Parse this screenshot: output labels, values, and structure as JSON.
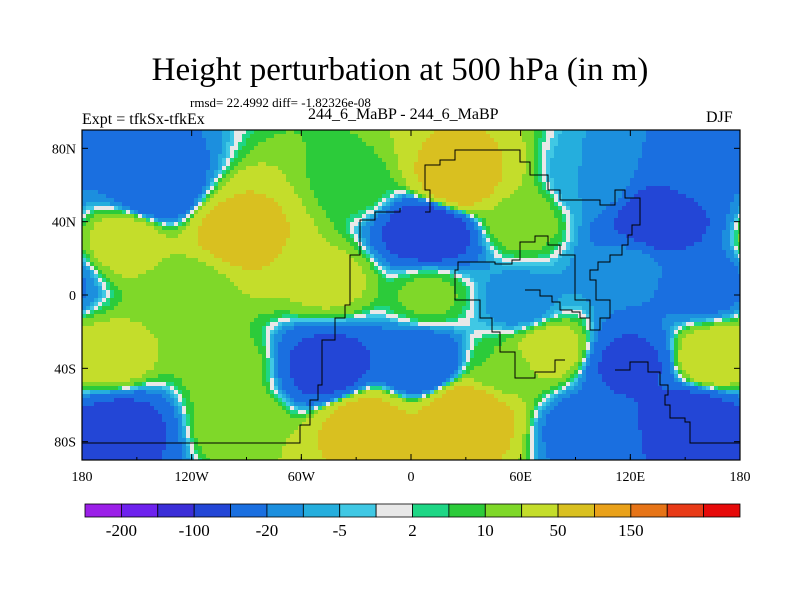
{
  "header": {
    "title": "Height perturbation at 500 hPa (in m)",
    "stats": "rmsd= 22.4992 diff= -1.82326e-08",
    "experiment": "Expt = tfkSx-tfkEx",
    "case_name": "244_6_MaBP - 244_6_MaBP",
    "season": "DJF"
  },
  "chart_data": {
    "type": "heatmap",
    "variable": "Height perturbation at 500 hPa",
    "units": "m",
    "xlim": [
      -180,
      180
    ],
    "ylim": [
      -90,
      90
    ],
    "x_ticks": [
      {
        "value": -180,
        "label": "180"
      },
      {
        "value": -120,
        "label": "120W"
      },
      {
        "value": -60,
        "label": "60W"
      },
      {
        "value": 0,
        "label": "0"
      },
      {
        "value": 60,
        "label": "60E"
      },
      {
        "value": 120,
        "label": "120E"
      },
      {
        "value": 180,
        "label": "180"
      }
    ],
    "y_ticks": [
      {
        "value": 80,
        "label": "80N"
      },
      {
        "value": 40,
        "label": "40N"
      },
      {
        "value": 0,
        "label": "0"
      },
      {
        "value": -40,
        "label": "40S"
      },
      {
        "value": -80,
        "label": "80S"
      }
    ],
    "colorbar": {
      "levels": [
        -300,
        -200,
        -150,
        -100,
        -50,
        -20,
        -10,
        -5,
        -2,
        2,
        5,
        10,
        20,
        50,
        100,
        150,
        200,
        300
      ],
      "labels": [
        {
          "after_box": 1,
          "text": "-200"
        },
        {
          "after_box": 3,
          "text": "-100"
        },
        {
          "after_box": 5,
          "text": "-20"
        },
        {
          "after_box": 7,
          "text": "-5"
        },
        {
          "after_box": 9,
          "text": "2"
        },
        {
          "after_box": 11,
          "text": "10"
        },
        {
          "after_box": 13,
          "text": "50"
        },
        {
          "after_box": 15,
          "text": "150"
        }
      ],
      "colors": [
        "#9b1fe8",
        "#6e22ee",
        "#3b2ed8",
        "#2346d6",
        "#1a6fe0",
        "#1c8fde",
        "#25aedd",
        "#40c8e4",
        "#e8e8e8",
        "#1ed685",
        "#2ccb3a",
        "#7fd829",
        "#c4dd2b",
        "#d9c020",
        "#e9a11a",
        "#e67417",
        "#e83a17",
        "#e60a0a"
      ]
    },
    "field_features": [
      {
        "lon": -140,
        "lat": 57,
        "value": -45
      },
      {
        "lon": -95,
        "lat": 33,
        "value": 70
      },
      {
        "lon": -155,
        "lat": 30,
        "value": 30
      },
      {
        "lon": -30,
        "lat": 60,
        "value": 8
      },
      {
        "lon": 10,
        "lat": 35,
        "value": -90
      },
      {
        "lon": 25,
        "lat": 62,
        "value": 75
      },
      {
        "lon": 60,
        "lat": 40,
        "value": 15
      },
      {
        "lon": 100,
        "lat": 62,
        "value": -10
      },
      {
        "lon": 135,
        "lat": 40,
        "value": -80
      },
      {
        "lon": 160,
        "lat": 72,
        "value": -20
      },
      {
        "lon": 120,
        "lat": 15,
        "value": -15
      },
      {
        "lon": 160,
        "lat": 5,
        "value": -30
      },
      {
        "lon": -120,
        "lat": 5,
        "value": 12
      },
      {
        "lon": -45,
        "lat": 8,
        "value": 25
      },
      {
        "lon": 10,
        "lat": 0,
        "value": 12
      },
      {
        "lon": 60,
        "lat": -5,
        "value": -15
      },
      {
        "lon": -165,
        "lat": -35,
        "value": 30
      },
      {
        "lon": -100,
        "lat": -40,
        "value": 15
      },
      {
        "lon": -45,
        "lat": -40,
        "value": -70
      },
      {
        "lon": 5,
        "lat": -38,
        "value": -50
      },
      {
        "lon": 50,
        "lat": -40,
        "value": 10
      },
      {
        "lon": 75,
        "lat": -30,
        "value": 30
      },
      {
        "lon": 120,
        "lat": -38,
        "value": -60
      },
      {
        "lon": 165,
        "lat": -35,
        "value": 40
      },
      {
        "lon": -160,
        "lat": -72,
        "value": -70
      },
      {
        "lon": -95,
        "lat": -68,
        "value": 20
      },
      {
        "lon": -25,
        "lat": -70,
        "value": 70
      },
      {
        "lon": 30,
        "lat": -65,
        "value": 90
      },
      {
        "lon": 95,
        "lat": -72,
        "value": -30
      },
      {
        "lon": 155,
        "lat": -68,
        "value": -80
      }
    ]
  }
}
